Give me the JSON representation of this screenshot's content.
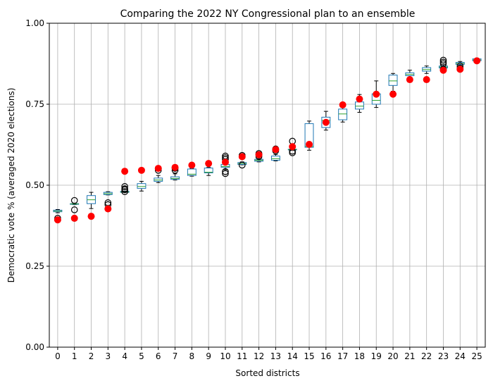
{
  "chart_data": {
    "type": "box",
    "title": "Comparing the 2022 NY Congressional plan to an ensemble",
    "xlabel": "Sorted districts",
    "ylabel": "Democratic vote % (averaged 2020 elections)",
    "ylim": [
      0,
      1
    ],
    "yticks": [
      0.0,
      0.25,
      0.5,
      0.75,
      1.0
    ],
    "ytick_labels": [
      "0.00",
      "0.25",
      "0.50",
      "0.75",
      "1.00"
    ],
    "grid": true,
    "categories": [
      "0",
      "1",
      "2",
      "3",
      "4",
      "5",
      "6",
      "7",
      "8",
      "9",
      "10",
      "11",
      "12",
      "13",
      "14",
      "15",
      "16",
      "17",
      "18",
      "19",
      "20",
      "21",
      "22",
      "23",
      "24",
      "25"
    ],
    "ensemble_boxes": [
      {
        "district": "0",
        "whisker_low": 0.415,
        "q1": 0.418,
        "median": 0.42,
        "q3": 0.423,
        "whisker_high": 0.425,
        "outliers": [
          0.398,
          0.393
        ]
      },
      {
        "district": "1",
        "whisker_low": 0.44,
        "q1": 0.441,
        "median": 0.442,
        "q3": 0.443,
        "whisker_high": 0.444,
        "outliers": [
          0.453,
          0.424,
          0.398
        ]
      },
      {
        "district": "2",
        "whisker_low": 0.428,
        "q1": 0.443,
        "median": 0.455,
        "q3": 0.468,
        "whisker_high": 0.478,
        "outliers": []
      },
      {
        "district": "3",
        "whisker_low": 0.47,
        "q1": 0.471,
        "median": 0.474,
        "q3": 0.478,
        "whisker_high": 0.48,
        "outliers": [
          0.446,
          0.44
        ]
      },
      {
        "district": "4",
        "whisker_low": 0.478,
        "q1": 0.478,
        "median": 0.479,
        "q3": 0.481,
        "whisker_high": 0.482,
        "outliers": [
          0.496,
          0.489,
          0.486,
          0.48
        ]
      },
      {
        "district": "5",
        "whisker_low": 0.482,
        "q1": 0.49,
        "median": 0.496,
        "q3": 0.505,
        "whisker_high": 0.512,
        "outliers": []
      },
      {
        "district": "6",
        "whisker_low": 0.508,
        "q1": 0.512,
        "median": 0.516,
        "q3": 0.522,
        "whisker_high": 0.53,
        "outliers": [
          0.546
        ]
      },
      {
        "district": "7",
        "whisker_low": 0.516,
        "q1": 0.518,
        "median": 0.521,
        "q3": 0.526,
        "whisker_high": 0.535,
        "outliers": [
          0.552,
          0.546
        ]
      },
      {
        "district": "8",
        "whisker_low": 0.528,
        "q1": 0.53,
        "median": 0.534,
        "q3": 0.55,
        "whisker_high": 0.552,
        "outliers": []
      },
      {
        "district": "9",
        "whisker_low": 0.53,
        "q1": 0.538,
        "median": 0.54,
        "q3": 0.553,
        "whisker_high": 0.555,
        "outliers": []
      },
      {
        "district": "10",
        "whisker_low": 0.548,
        "q1": 0.555,
        "median": 0.558,
        "q3": 0.564,
        "whisker_high": 0.57,
        "outliers": [
          0.59,
          0.585,
          0.58,
          0.542,
          0.536
        ]
      },
      {
        "district": "11",
        "whisker_low": 0.563,
        "q1": 0.564,
        "median": 0.567,
        "q3": 0.57,
        "whisker_high": 0.572,
        "outliers": [
          0.592,
          0.588,
          0.562
        ]
      },
      {
        "district": "12",
        "whisker_low": 0.572,
        "q1": 0.574,
        "median": 0.577,
        "q3": 0.58,
        "whisker_high": 0.582,
        "outliers": [
          0.598,
          0.593,
          0.588
        ]
      },
      {
        "district": "13",
        "whisker_low": 0.575,
        "q1": 0.577,
        "median": 0.582,
        "q3": 0.59,
        "whisker_high": 0.595,
        "outliers": [
          0.612,
          0.606
        ]
      },
      {
        "district": "14",
        "whisker_low": 0.608,
        "q1": 0.609,
        "median": 0.61,
        "q3": 0.611,
        "whisker_high": 0.612,
        "outliers": [
          0.636,
          0.605,
          0.6
        ]
      },
      {
        "district": "15",
        "whisker_low": 0.608,
        "q1": 0.617,
        "median": 0.62,
        "q3": 0.69,
        "whisker_high": 0.698,
        "outliers": []
      },
      {
        "district": "16",
        "whisker_low": 0.67,
        "q1": 0.678,
        "median": 0.7,
        "q3": 0.71,
        "whisker_high": 0.728,
        "outliers": []
      },
      {
        "district": "17",
        "whisker_low": 0.695,
        "q1": 0.702,
        "median": 0.72,
        "q3": 0.735,
        "whisker_high": 0.748,
        "outliers": []
      },
      {
        "district": "18",
        "whisker_low": 0.725,
        "q1": 0.735,
        "median": 0.744,
        "q3": 0.757,
        "whisker_high": 0.78,
        "outliers": []
      },
      {
        "district": "19",
        "whisker_low": 0.74,
        "q1": 0.75,
        "median": 0.762,
        "q3": 0.782,
        "whisker_high": 0.822,
        "outliers": []
      },
      {
        "district": "20",
        "whisker_low": 0.79,
        "q1": 0.808,
        "median": 0.822,
        "q3": 0.84,
        "whisker_high": 0.845,
        "outliers": []
      },
      {
        "district": "21",
        "whisker_low": 0.832,
        "q1": 0.838,
        "median": 0.842,
        "q3": 0.847,
        "whisker_high": 0.855,
        "outliers": []
      },
      {
        "district": "22",
        "whisker_low": 0.845,
        "q1": 0.852,
        "median": 0.857,
        "q3": 0.863,
        "whisker_high": 0.868,
        "outliers": []
      },
      {
        "district": "23",
        "whisker_low": 0.86,
        "q1": 0.862,
        "median": 0.865,
        "q3": 0.868,
        "whisker_high": 0.872,
        "outliers": [
          0.886,
          0.88,
          0.875,
          0.858
        ]
      },
      {
        "district": "24",
        "whisker_low": 0.87,
        "q1": 0.873,
        "median": 0.876,
        "q3": 0.879,
        "whisker_high": 0.882,
        "outliers": [
          0.868,
          0.862,
          0.858
        ]
      },
      {
        "district": "25",
        "whisker_low": 0.882,
        "q1": 0.884,
        "median": 0.887,
        "q3": 0.89,
        "whisker_high": 0.892,
        "outliers": []
      }
    ],
    "enacted_plan": {
      "color": "#ff0000",
      "values": [
        0.393,
        0.398,
        0.404,
        0.427,
        0.543,
        0.546,
        0.552,
        0.555,
        0.562,
        0.567,
        0.571,
        0.588,
        0.594,
        0.61,
        0.619,
        0.626,
        0.694,
        0.748,
        0.766,
        0.781,
        0.781,
        0.826,
        0.826,
        0.855,
        0.858,
        0.884
      ]
    },
    "colors": {
      "box": "#1f77b4",
      "median": "#2ca02c",
      "whisker": "#000000",
      "outlier": "#000000",
      "grid": "#b0b0b0"
    }
  }
}
